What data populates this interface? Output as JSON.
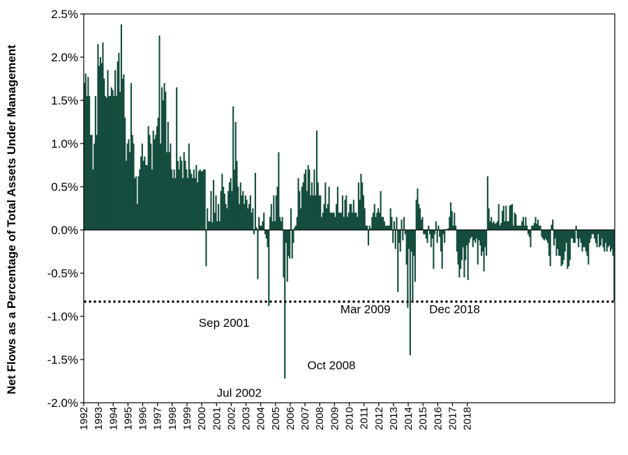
{
  "chart_data": {
    "type": "bar",
    "ylabel": "Net Flows as a Percentage of Total Assets Under Management",
    "ylim": [
      -2.0,
      2.5
    ],
    "y_ticks": [
      "2.5%",
      "2.0%",
      "1.5%",
      "1.0%",
      "0.5%",
      "0.0%",
      "-0.5%",
      "-1.0%",
      "-1.5%",
      "-2.0%"
    ],
    "x_ticks": [
      "1992",
      "1993",
      "1994",
      "1995",
      "1996",
      "1997",
      "1998",
      "1999",
      "2000",
      "2001",
      "2002",
      "2003",
      "2004",
      "2005",
      "2006",
      "2007",
      "2008",
      "2009",
      "2010",
      "2011",
      "2012",
      "2013",
      "2014",
      "2015",
      "2016",
      "2017",
      "2018"
    ],
    "x_start": "1992-01",
    "x_end": "2018-12",
    "bar_color": "#154d3e",
    "reference_line": {
      "value": -0.83,
      "style": "dotted",
      "color": "#000000"
    },
    "annotations": [
      {
        "label": "Sep 2001",
        "date": "2001-09",
        "value": -0.88
      },
      {
        "label": "Jul 2002",
        "date": "2002-07",
        "value": -1.72
      },
      {
        "label": "Oct 2008",
        "date": "2008-10",
        "value": -1.45
      },
      {
        "label": "Mar 2009",
        "date": "2009-03",
        "value": -0.82
      },
      {
        "label": "Dec 2018",
        "date": "2018-12",
        "value": -0.82
      }
    ],
    "series": [
      {
        "values": [
          1.7,
          1.81,
          1.55,
          1.77,
          1.55,
          1.1,
          1.1,
          0.7,
          1.0,
          1.55,
          1.1,
          2.15,
          1.9,
          2.0,
          1.93,
          2.17,
          1.75,
          1.55,
          1.53,
          1.85,
          1.55,
          1.55,
          1.65,
          1.62,
          1.55,
          1.85,
          1.55,
          1.95,
          2.05,
          1.6,
          2.38,
          1.75,
          1.8,
          1.3,
          0.8,
          1.0,
          1.05,
          0.9,
          1.7,
          1.1,
          1.0,
          0.6,
          0.62,
          0.3,
          0.62,
          0.7,
          0.85,
          1.0,
          0.8,
          0.85,
          0.75,
          0.75,
          1.2,
          1.1,
          1.0,
          0.7,
          1.15,
          1.05,
          1.1,
          1.2,
          1.3,
          2.25,
          1.0,
          1.65,
          1.5,
          1.7,
          1.6,
          0.9,
          1.25,
          0.9,
          1.0,
          0.7,
          0.6,
          0.7,
          0.6,
          1.65,
          0.8,
          0.7,
          0.85,
          0.8,
          0.6,
          0.9,
          0.8,
          0.7,
          0.6,
          1.0,
          0.7,
          0.65,
          0.6,
          0.7,
          0.6,
          0.75,
          0.55,
          0.68,
          0.7,
          0.68,
          0.68,
          0.7,
          0.7,
          -0.42,
          0.25,
          0.1,
          0.1,
          0.45,
          0.09,
          0.58,
          0.2,
          0.4,
          0.1,
          0.3,
          0.1,
          0.45,
          0.65,
          0.5,
          0.42,
          0.3,
          0.25,
          0.45,
          0.55,
          0.6,
          0.45,
          1.43,
          0.7,
          1.25,
          0.8,
          0.5,
          0.3,
          0.55,
          0.4,
          0.45,
          0.3,
          0.4,
          0.35,
          0.25,
          0.3,
          0.4,
          0.2,
          0.25,
          -0.05,
          0.66,
          0.03,
          -0.57,
          0.15,
          0.05,
          0.05,
          0.1,
          0.2,
          -0.05,
          -0.1,
          -0.2,
          -0.88,
          0.15,
          0.3,
          0.1,
          0.4,
          0.1,
          0.4,
          0.5,
          0.9,
          0.15,
          0.1,
          0.15,
          -0.55,
          -1.72,
          -0.15,
          -0.6,
          -0.3,
          -0.33,
          0.25,
          -0.33,
          -0.15,
          0.03,
          0.05,
          0.15,
          0.6,
          0.45,
          0.25,
          0.5,
          0.55,
          0.65,
          0.7,
          0.45,
          0.75,
          0.7,
          0.4,
          0.55,
          0.4,
          0.7,
          0.4,
          1.15,
          0.55,
          0.4,
          0.4,
          0.15,
          0.2,
          0.3,
          0.55,
          0.25,
          0.3,
          0.5,
          0.2,
          0.2,
          0.2,
          0.2,
          0.15,
          0.3,
          0.5,
          0.2,
          0.2,
          0.2,
          0.4,
          0.15,
          0.35,
          0.4,
          0.15,
          0.2,
          0.3,
          0.3,
          0.2,
          0.35,
          0.2,
          0.2,
          0.15,
          0.55,
          0.35,
          0.65,
          0.55,
          0.4,
          0.25,
          0.05,
          0.05,
          -0.18,
          0.05,
          0.02,
          0.15,
          0.2,
          0.3,
          0.15,
          0.2,
          0.25,
          0.2,
          0.45,
          0.15,
          0.15,
          0.1,
          0.05,
          0.05,
          0.05,
          0.05,
          0.25,
          0.15,
          -0.15,
          0.1,
          -0.22,
          0.15,
          -0.72,
          -0.15,
          -0.25,
          0.12,
          -0.12,
          0.15,
          -0.05,
          -0.4,
          -0.9,
          -0.22,
          -1.45,
          -0.25,
          -0.82,
          -0.3,
          -0.6,
          0.35,
          0.48,
          0.3,
          0.25,
          0.12,
          0.15,
          -0.05,
          -0.05,
          -0.1,
          -0.15,
          0.05,
          -0.05,
          -0.2,
          -0.1,
          -0.45,
          -0.05,
          0.1,
          -0.15,
          0.05,
          -0.08,
          -0.25,
          -0.45,
          -0.05,
          -0.15,
          0.01,
          0.01,
          0.02,
          0.15,
          0.32,
          0.22,
          0.05,
          0.2,
          0.05,
          -0.25,
          -0.4,
          -0.55,
          -0.45,
          -0.35,
          -0.2,
          -0.55,
          -0.35,
          -0.18,
          -0.58,
          -0.15,
          -0.1,
          -0.08,
          -0.2,
          -0.12,
          -0.15,
          -0.1,
          -0.4,
          -0.12,
          -0.18,
          -0.3,
          -0.25,
          -0.48,
          -0.2,
          -0.3,
          0.62,
          0.25,
          0.1,
          0.15,
          0.08,
          0.1,
          0.07,
          0.08,
          0.1,
          0.3,
          0.05,
          0.08,
          0.22,
          0.28,
          0.1,
          0.28,
          0.1,
          0.1,
          0.28,
          0.29,
          0.3,
          0.05,
          0.2,
          0.18,
          0.05,
          0.05,
          0.05,
          0.05,
          0.1,
          0.15,
          0.05,
          0.15,
          0.05,
          -0.05,
          -0.08,
          -0.2,
          0.05,
          0.05,
          0.08,
          0.15,
          0.07,
          0.12,
          0.05,
          0.05,
          -0.08,
          -0.1,
          -0.12,
          -0.1,
          -0.12,
          -0.15,
          -0.3,
          -0.42,
          0.06,
          0.12,
          -0.18,
          -0.1,
          -0.3,
          -0.22,
          -0.3,
          -0.3,
          -0.42,
          -0.4,
          -0.35,
          -0.25,
          -0.15,
          -0.45,
          -0.42,
          -0.35,
          -0.1,
          -0.1,
          -0.15,
          -0.15,
          0.05,
          -0.1,
          -0.2,
          -0.1,
          -0.15,
          -0.25,
          -0.2,
          -0.2,
          -0.25,
          -0.3,
          -0.4,
          -0.15,
          -0.1,
          -0.05,
          -0.05,
          -0.1,
          -0.15,
          -0.2,
          -0.05,
          -0.2,
          -0.18,
          -0.1,
          -0.2,
          -0.25,
          -0.15,
          -0.25,
          -0.2,
          -0.18,
          -0.25,
          -0.22,
          -0.3,
          -0.82
        ]
      }
    ]
  }
}
